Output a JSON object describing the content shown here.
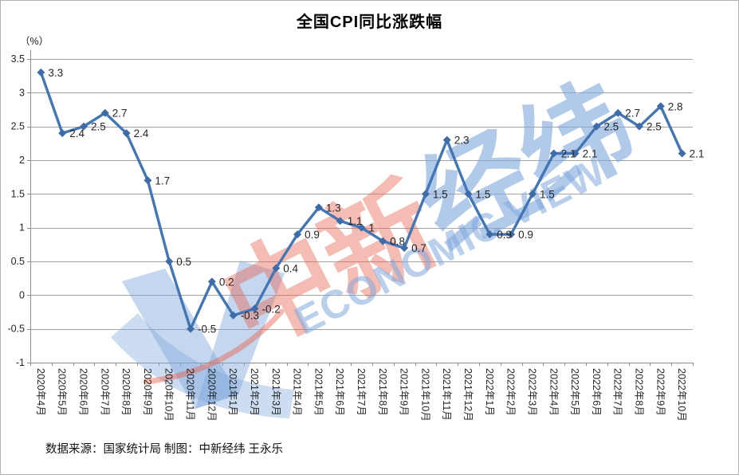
{
  "page": {
    "title": "全国CPI同比涨跌幅",
    "y_unit_label": "（%）",
    "footer": "数据来源：国家统计局 制图：中新经纬 王永乐"
  },
  "watermark": {
    "cn_red": "中新",
    "cn_blue": "经纬",
    "en": "ECONOMIC VIEW"
  },
  "colors": {
    "series": "#4276b4",
    "marker": "#3d6ca8",
    "gridline": "#a3a3a3",
    "axis": "#8c8c8c",
    "label_text": "#262626",
    "watermark_red": "#e8604a",
    "watermark_blue": "#7fa7dc",
    "frame_border": "#b3b3b3"
  },
  "chart_data": {
    "type": "line",
    "title": "全国CPI同比涨跌幅",
    "ylabel": "（%）",
    "ylim": [
      -1,
      3.5
    ],
    "ytick_step": 0.5,
    "grid": true,
    "legend": "none",
    "marker": "diamond",
    "categories": [
      "2020年4月",
      "2020年5月",
      "2020年6月",
      "2020年7月",
      "2020年8月",
      "2020年9月",
      "2020年10月",
      "2020年11月",
      "2020年12月",
      "2021年1月",
      "2021年2月",
      "2021年3月",
      "2021年4月",
      "2021年5月",
      "2021年6月",
      "2021年7月",
      "2021年8月",
      "2021年9月",
      "2021年10月",
      "2021年11月",
      "2021年12月",
      "2022年1月",
      "2022年2月",
      "2022年3月",
      "2022年4月",
      "2022年5月",
      "2022年6月",
      "2022年7月",
      "2022年8月",
      "2022年9月",
      "2022年10月"
    ],
    "values": [
      3.3,
      2.4,
      2.5,
      2.7,
      2.4,
      1.7,
      0.5,
      -0.5,
      0.2,
      -0.3,
      -0.2,
      0.4,
      0.9,
      1.3,
      1.1,
      1,
      0.8,
      0.7,
      1.5,
      2.3,
      1.5,
      0.9,
      0.9,
      1.5,
      2.1,
      2.1,
      2.5,
      2.7,
      2.5,
      2.8,
      2.1
    ],
    "source_note": "数据来源：国家统计局 制图：中新经纬 王永乐"
  }
}
